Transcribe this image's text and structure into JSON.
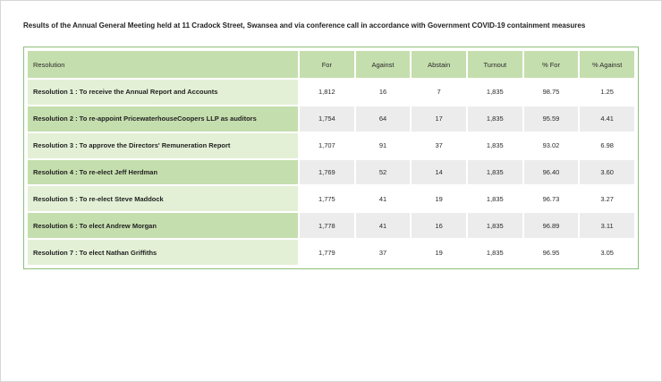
{
  "title": "Results of the Annual General Meeting held at 11 Cradock Street, Swansea and via conference call in accordance with Government COVID-19 containment measures",
  "table": {
    "headers": [
      "Resolution",
      "For",
      "Against",
      "Abstain",
      "Turnout",
      "% For",
      "% Against"
    ],
    "rows": [
      [
        "Resolution 1 : To receive the Annual Report and Accounts",
        "1,812",
        "16",
        "7",
        "1,835",
        "98.75",
        "1.25"
      ],
      [
        "Resolution 2 : To re-appoint PricewaterhouseCoopers LLP as auditors",
        "1,754",
        "64",
        "17",
        "1,835",
        "95.59",
        "4.41"
      ],
      [
        "Resolution 3 : To approve the Directors' Remuneration Report",
        "1,707",
        "91",
        "37",
        "1,835",
        "93.02",
        "6.98"
      ],
      [
        "Resolution 4 : To re-elect Jeff Herdman",
        "1,769",
        "52",
        "14",
        "1,835",
        "96.40",
        "3.60"
      ],
      [
        "Resolution 5 : To re-elect Steve Maddock",
        "1,775",
        "41",
        "19",
        "1,835",
        "96.73",
        "3.27"
      ],
      [
        "Resolution 6 : To elect Andrew Morgan",
        "1,778",
        "41",
        "16",
        "1,835",
        "96.89",
        "3.11"
      ],
      [
        "Resolution 7 : To elect Nathan Griffiths",
        "1,779",
        "37",
        "19",
        "1,835",
        "96.95",
        "3.05"
      ]
    ]
  },
  "colors": {
    "header_green": "#c5deae",
    "light_green": "#e3f0d6",
    "border_green": "#8cc07a",
    "grey_row": "#ececec"
  }
}
